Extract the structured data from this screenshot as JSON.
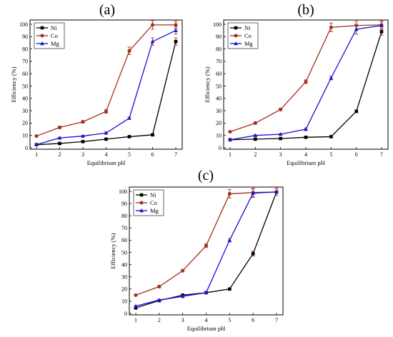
{
  "colors": {
    "Ni": "#000000",
    "Co": "#a0301e",
    "Mg": "#1010e0",
    "error": "#c04040"
  },
  "chart_data": [
    {
      "type": "line",
      "panel_label": "(a)",
      "xlabel": "Equilibrium pH",
      "ylabel": "Efficiency (%)",
      "x": [
        1,
        2,
        3,
        4,
        5,
        6,
        7
      ],
      "xlim": [
        1,
        7
      ],
      "ylim": [
        0,
        100
      ],
      "yticks": [
        0,
        10,
        20,
        30,
        40,
        50,
        60,
        70,
        80,
        90,
        100
      ],
      "legend": "top-left",
      "series": [
        {
          "name": "Ni",
          "marker": "square",
          "values": [
            2.5,
            3.5,
            5,
            7,
            9,
            10.5,
            86
          ],
          "errors": [
            0.5,
            0.5,
            0.5,
            0.5,
            0.5,
            0.5,
            3
          ]
        },
        {
          "name": "Co",
          "marker": "circle",
          "values": [
            9.5,
            16.5,
            21,
            29.5,
            78.5,
            99.5,
            99.5
          ],
          "errors": [
            0.5,
            1,
            1,
            1.5,
            3,
            3.5,
            3
          ]
        },
        {
          "name": "Mg",
          "marker": "triangle",
          "values": [
            2.5,
            8,
            9.5,
            12,
            24,
            86,
            95
          ],
          "errors": [
            0.5,
            0.5,
            0.5,
            1,
            1,
            3,
            3
          ]
        }
      ]
    },
    {
      "type": "line",
      "panel_label": "(b)",
      "xlabel": "Equilibrium pH",
      "ylabel": "Efficiency (%)",
      "x": [
        1,
        2,
        3,
        4,
        5,
        6,
        7
      ],
      "xlim": [
        1,
        7
      ],
      "ylim": [
        0,
        100
      ],
      "yticks": [
        0,
        10,
        20,
        30,
        40,
        50,
        60,
        70,
        80,
        90,
        100
      ],
      "legend": "top-left",
      "series": [
        {
          "name": "Ni",
          "marker": "square",
          "values": [
            6.5,
            7,
            7.5,
            8.5,
            9,
            29.5,
            94
          ],
          "errors": [
            0.5,
            0.5,
            0.5,
            0.5,
            0.5,
            1,
            3
          ]
        },
        {
          "name": "Co",
          "marker": "circle",
          "values": [
            13,
            20,
            31,
            53.5,
            97.5,
            99,
            99.5
          ],
          "errors": [
            0.5,
            1,
            1,
            1.5,
            3.5,
            3.5,
            3.5
          ]
        },
        {
          "name": "Mg",
          "marker": "triangle",
          "values": [
            6.5,
            10,
            11,
            15,
            56.5,
            96,
            99
          ],
          "errors": [
            0.5,
            0.5,
            0.5,
            1,
            1.5,
            4,
            3
          ]
        }
      ]
    },
    {
      "type": "line",
      "panel_label": "(c)",
      "xlabel": "Equilibrium pH",
      "ylabel": "Efficiency (%)",
      "x": [
        1,
        2,
        3,
        4,
        5,
        6,
        7
      ],
      "xlim": [
        1,
        7
      ],
      "ylim": [
        0,
        100
      ],
      "yticks": [
        0,
        10,
        20,
        30,
        40,
        50,
        60,
        70,
        80,
        90,
        100
      ],
      "legend": "top-left",
      "series": [
        {
          "name": "Ni",
          "marker": "square",
          "values": [
            4.5,
            10.5,
            15,
            17,
            20,
            49,
            99.5
          ],
          "errors": [
            0.5,
            0.5,
            0.5,
            0.5,
            0.5,
            2,
            3
          ]
        },
        {
          "name": "Co",
          "marker": "circle",
          "values": [
            15,
            22,
            35,
            55.5,
            98,
            99,
            99.5
          ],
          "errors": [
            0.5,
            1,
            1,
            1.5,
            3.5,
            3.5,
            3
          ]
        },
        {
          "name": "Mg",
          "marker": "triangle",
          "values": [
            6,
            11,
            14,
            17,
            60,
            98.5,
            99.5
          ],
          "errors": [
            0.5,
            0.5,
            0.5,
            0.5,
            1.5,
            3.5,
            3
          ]
        }
      ]
    }
  ]
}
